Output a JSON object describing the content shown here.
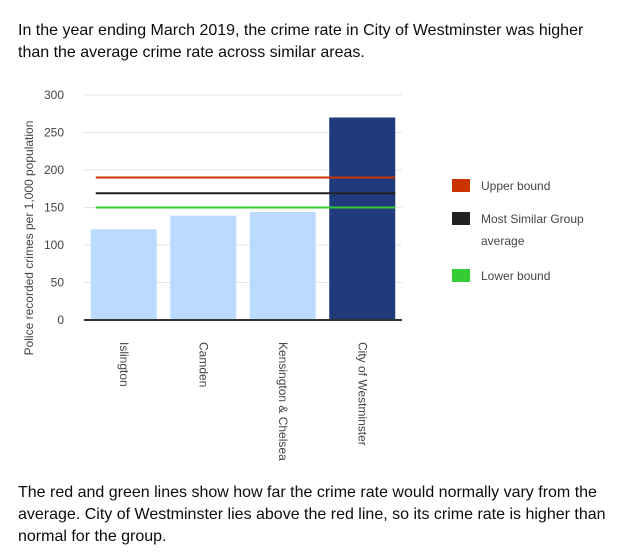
{
  "intro_text": "In the year ending March 2019, the crime rate in City of Westminster was higher than the average crime rate across similar areas.",
  "outro_text": "The red and green lines show how far the crime rate would normally vary from the average. City of Westminster lies above the red line, so its crime rate is higher than normal for the group.",
  "chart_data": {
    "type": "bar",
    "ylabel": "Police recorded crimes per 1,000 population",
    "ylim": [
      0,
      300
    ],
    "yticks": [
      0,
      50,
      100,
      150,
      200,
      250,
      300
    ],
    "grid": true,
    "categories": [
      "Islington",
      "Camden",
      "Kensington & Chelsea",
      "City of Westminster"
    ],
    "values": [
      121,
      139,
      144,
      270
    ],
    "bar_colors": [
      "#bbdaff",
      "#bbdaff",
      "#bbdaff",
      "#1f3b7b"
    ],
    "lines": [
      {
        "name": "Upper bound",
        "value": 190,
        "color": "#cc3300"
      },
      {
        "name": "Most Similar Group average",
        "value": 169,
        "color": "#222222"
      },
      {
        "name": "Lower bound",
        "value": 150,
        "color": "#33cc33"
      }
    ],
    "legend_position": "right",
    "legend": [
      {
        "label_lines": [
          "Upper bound"
        ],
        "color": "#cc3300"
      },
      {
        "label_lines": [
          "Most Similar Group",
          "average"
        ],
        "color": "#222222"
      },
      {
        "label_lines": [
          "Lower bound"
        ],
        "color": "#33cc33"
      }
    ]
  }
}
